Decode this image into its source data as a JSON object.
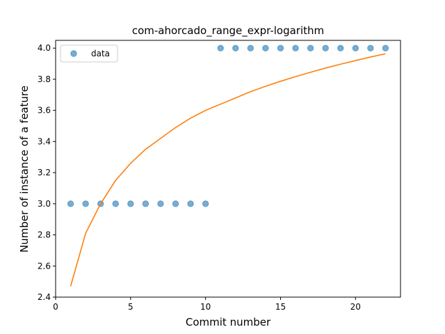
{
  "chart_data": {
    "type": "scatter",
    "title": "com-ahorcado_range_expr-logarithm",
    "xlabel": "Commit number",
    "ylabel": "Number of instance of a feature",
    "xlim": [
      0,
      23
    ],
    "ylim": [
      2.4,
      4.05
    ],
    "xticks": [
      0,
      5,
      10,
      15,
      20
    ],
    "yticks": [
      2.4,
      2.6,
      2.8,
      3.0,
      3.2,
      3.4,
      3.6,
      3.8,
      4.0
    ],
    "legend_position": "top-left",
    "series": [
      {
        "name": "data",
        "kind": "scatter",
        "color": "#1f77b4",
        "x": [
          1,
          2,
          3,
          4,
          5,
          6,
          7,
          8,
          9,
          10,
          11,
          12,
          13,
          14,
          15,
          16,
          17,
          18,
          19,
          20,
          21,
          22
        ],
        "y": [
          3,
          3,
          3,
          3,
          3,
          3,
          3,
          3,
          3,
          3,
          4,
          4,
          4,
          4,
          4,
          4,
          4,
          4,
          4,
          4,
          4,
          4
        ]
      },
      {
        "kind": "line",
        "color": "#ff7f0e",
        "x": [
          1,
          2,
          3,
          4,
          5,
          6,
          7,
          8,
          9,
          10,
          11,
          12,
          13,
          14,
          15,
          16,
          17,
          18,
          19,
          20,
          21,
          22
        ],
        "y": [
          2.47,
          2.81,
          3.0,
          3.15,
          3.26,
          3.35,
          3.42,
          3.49,
          3.55,
          3.6,
          3.64,
          3.68,
          3.72,
          3.755,
          3.787,
          3.817,
          3.845,
          3.872,
          3.897,
          3.92,
          3.943,
          3.964
        ]
      }
    ]
  }
}
